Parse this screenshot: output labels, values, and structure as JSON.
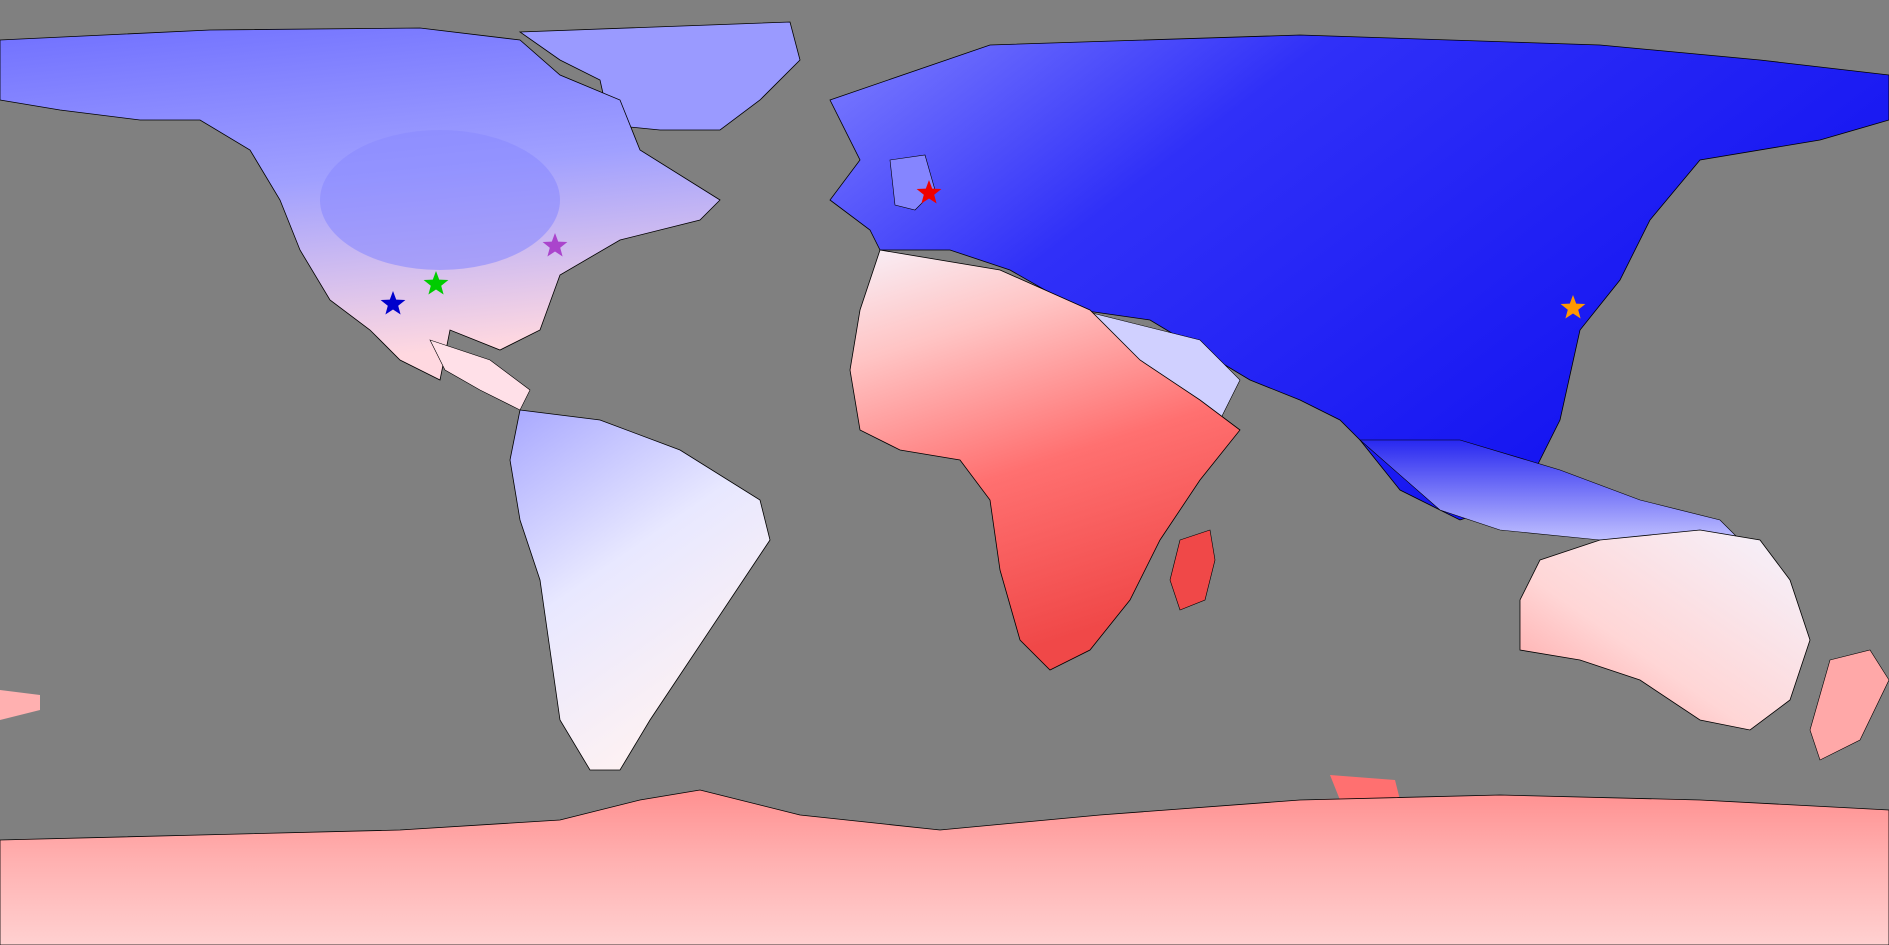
{
  "map": {
    "projection": "equirectangular",
    "background_color": "#808080",
    "coast_color": "#000000",
    "color_scale": {
      "cold_deep": "#0000f0",
      "cold_mid": "#5a5aff",
      "cold_light": "#9a9aff",
      "neutral": "#f4f4ff",
      "warm_light": "#ffd0d0",
      "warm_mid": "#ff8a8a",
      "warm_deep": "#f03c3c"
    }
  },
  "markers": [
    {
      "id": "marker-western-us",
      "color": "#0000cc",
      "icon": "star-icon"
    },
    {
      "id": "marker-central-us",
      "color": "#00cc00",
      "icon": "star-icon"
    },
    {
      "id": "marker-eastern-us",
      "color": "#aa44cc",
      "icon": "star-icon"
    },
    {
      "id": "marker-uk",
      "color": "#ee0000",
      "icon": "star-icon"
    },
    {
      "id": "marker-east-china",
      "color": "#ff9900",
      "icon": "star-icon"
    }
  ]
}
